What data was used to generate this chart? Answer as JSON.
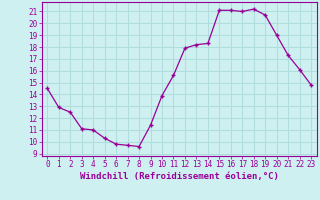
{
  "x": [
    0,
    1,
    2,
    3,
    4,
    5,
    6,
    7,
    8,
    9,
    10,
    11,
    12,
    13,
    14,
    15,
    16,
    17,
    18,
    19,
    20,
    21,
    22,
    23
  ],
  "y": [
    14.5,
    12.9,
    12.5,
    11.1,
    11.0,
    10.3,
    9.8,
    9.7,
    9.6,
    11.4,
    13.9,
    15.6,
    17.9,
    18.2,
    18.3,
    21.1,
    21.1,
    21.0,
    21.2,
    20.7,
    19.0,
    17.3,
    16.1,
    14.8
  ],
  "line_color": "#990099",
  "marker": "+",
  "marker_size": 3,
  "bg_color": "#cff0f0",
  "grid_color": "#b0dede",
  "xlabel": "Windchill (Refroidissement éolien,°C)",
  "ylabel_ticks": [
    9,
    10,
    11,
    12,
    13,
    14,
    15,
    16,
    17,
    18,
    19,
    20,
    21
  ],
  "ylim": [
    8.8,
    21.8
  ],
  "xlim": [
    -0.5,
    23.5
  ],
  "xticks": [
    0,
    1,
    2,
    3,
    4,
    5,
    6,
    7,
    8,
    9,
    10,
    11,
    12,
    13,
    14,
    15,
    16,
    17,
    18,
    19,
    20,
    21,
    22,
    23
  ],
  "tick_fontsize": 5.5,
  "xlabel_fontsize": 6.5
}
